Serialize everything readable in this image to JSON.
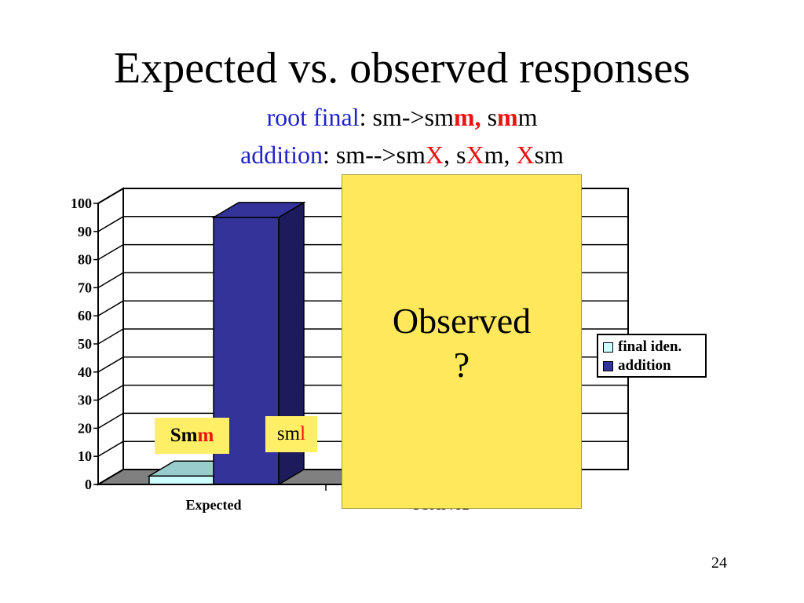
{
  "slide": {
    "title": "Expected vs. observed responses",
    "subtitle1": {
      "label": "root final",
      "colon": ": sm->sm",
      "mark1": "m,",
      "space": " s",
      "mark2": "m",
      "tail": "m"
    },
    "subtitle2": {
      "label": "addition",
      "part1": ": sm-->sm",
      "x1": "X",
      "part2": ", s",
      "x2": "X",
      "part3": "m, ",
      "x3": "X",
      "part4": "sm"
    },
    "page_number": "24",
    "label_smm": {
      "prefix": "Sm",
      "mark": "m"
    },
    "label_sml": {
      "prefix": "sm",
      "mark": "l"
    },
    "overlay": {
      "line1": "Observed",
      "line2": "?"
    }
  },
  "colors": {
    "blue_text": "#2222cc",
    "red_text": "#ee1111",
    "addition_front": "#333399",
    "addition_side": "#1c1c5c",
    "final_iden_front": "#ccffff",
    "final_iden_top": "#99cccc",
    "floor": "#808080",
    "overlay_yellow": "#ffe85c"
  },
  "chart_data": {
    "type": "bar",
    "categories": [
      "Expected",
      "Observed"
    ],
    "series": [
      {
        "name": "final iden.",
        "values": [
          3,
          null
        ]
      },
      {
        "name": "addition",
        "values": [
          95,
          null
        ]
      }
    ],
    "ylim": [
      0,
      100
    ],
    "yticks": [
      "0",
      "10",
      "20",
      "30",
      "40",
      "50",
      "60",
      "70",
      "80",
      "90",
      "100"
    ],
    "legend_position": "right",
    "grid": true,
    "three_d": true
  }
}
